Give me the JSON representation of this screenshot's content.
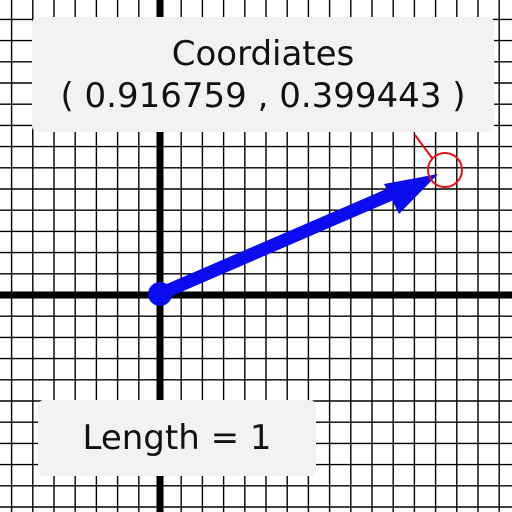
{
  "coordinates": {
    "title": "Coordiates",
    "x": "0.916759",
    "y": "0.399443",
    "open": "( ",
    "separator": " , ",
    "close": " )"
  },
  "length": {
    "label": "Length",
    "equals": " = ",
    "value": "1"
  },
  "colors": {
    "grid": "#000000",
    "axis": "#000000",
    "vector": "#0b0bf0",
    "handle": "#e81010",
    "box": "#f2f2f0"
  },
  "icons": [
    "vector-arrow",
    "origin-dot",
    "drag-handle-circle"
  ]
}
